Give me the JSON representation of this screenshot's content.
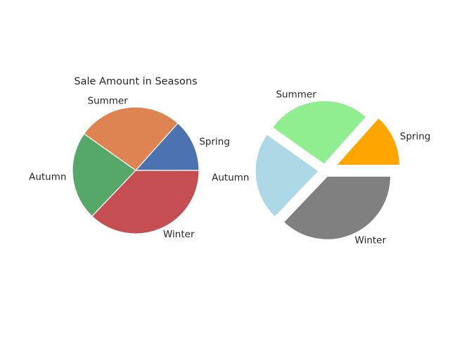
{
  "chart_data": [
    {
      "type": "pie",
      "title": "Sale Amount in Seasons",
      "categories": [
        "Spring",
        "Summer",
        "Autumn",
        "Winter"
      ],
      "values": [
        13,
        26,
        22,
        36
      ],
      "colors": [
        "#4c72b0",
        "#dd8452",
        "#55a868",
        "#c44e52"
      ],
      "explode": [
        0,
        0,
        0,
        0
      ]
    },
    {
      "type": "pie",
      "title": "",
      "categories": [
        "Spring",
        "Summer",
        "Autumn",
        "Winter"
      ],
      "values": [
        13,
        26,
        22,
        36
      ],
      "colors": [
        "#ffa500",
        "#90ee90",
        "#add8e6",
        "#808080"
      ],
      "explode": [
        0.2,
        0.1,
        0.1,
        0.1
      ]
    }
  ]
}
